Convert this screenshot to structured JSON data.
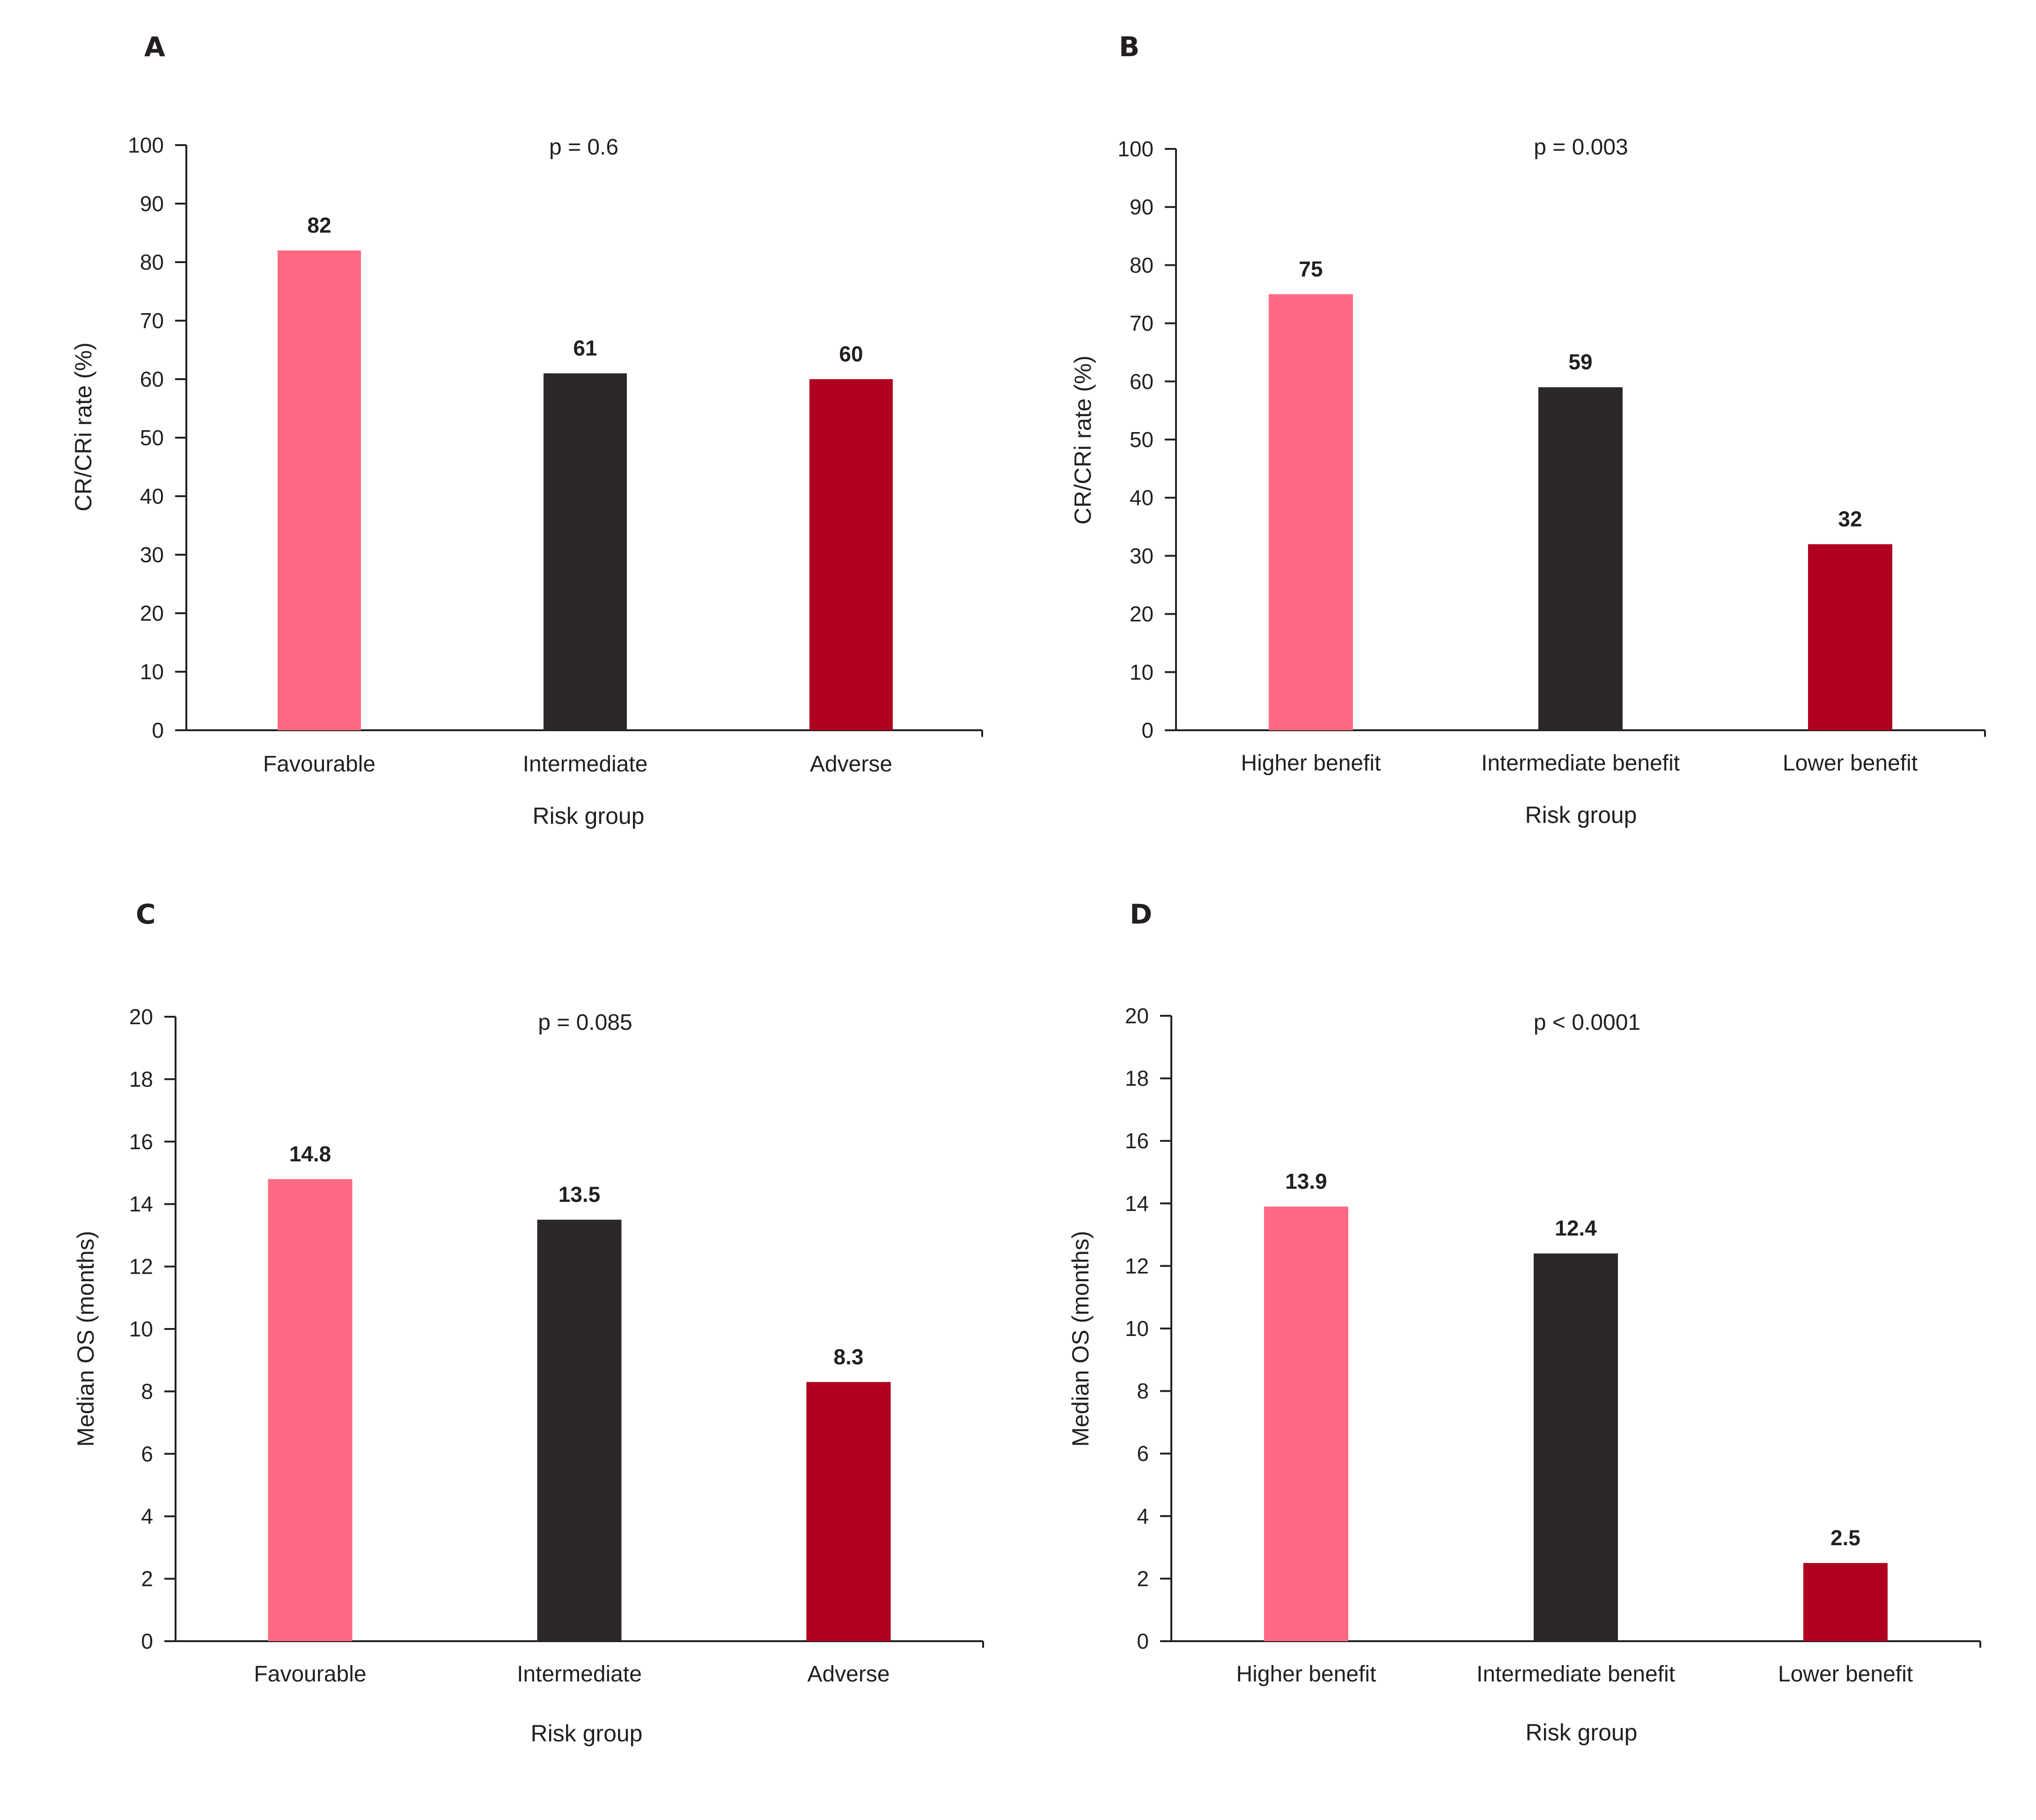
{
  "chart_data": [
    {
      "type": "bar",
      "panel": "A",
      "annotation": "p = 0.6",
      "categories": [
        "Favourable",
        "Intermediate",
        "Adverse"
      ],
      "values": [
        82,
        61,
        60
      ],
      "xlabel": "Risk group",
      "ylabel": "CR/CRi rate (%)",
      "ylim": [
        0,
        100
      ],
      "yticks": [
        0,
        10,
        20,
        30,
        40,
        50,
        60,
        70,
        80,
        90,
        100
      ],
      "colors": [
        "#ff6a82",
        "#2c2829",
        "#b00020"
      ],
      "grid": false
    },
    {
      "type": "bar",
      "panel": "B",
      "annotation": "p = 0.003",
      "categories": [
        "Higher benefit",
        "Intermediate benefit",
        "Lower benefit"
      ],
      "values": [
        75,
        59,
        32
      ],
      "xlabel": "Risk group",
      "ylabel": "CR/CRi rate (%)",
      "ylim": [
        0,
        100
      ],
      "yticks": [
        0,
        10,
        20,
        30,
        40,
        50,
        60,
        70,
        80,
        90,
        100
      ],
      "colors": [
        "#ff6a82",
        "#2c2829",
        "#b00020"
      ],
      "grid": false
    },
    {
      "type": "bar",
      "panel": "C",
      "annotation": "p = 0.085",
      "categories": [
        "Favourable",
        "Intermediate",
        "Adverse"
      ],
      "values": [
        14.8,
        13.5,
        8.3
      ],
      "xlabel": "Risk group",
      "ylabel": "Median OS (months)",
      "ylim": [
        0,
        20
      ],
      "yticks": [
        0,
        2,
        4,
        6,
        8,
        10,
        12,
        14,
        16,
        18,
        20
      ],
      "colors": [
        "#ff6a82",
        "#2c2829",
        "#b00020"
      ],
      "grid": false
    },
    {
      "type": "bar",
      "panel": "D",
      "annotation": "p < 0.0001",
      "categories": [
        "Higher benefit",
        "Intermediate benefit",
        "Lower benefit"
      ],
      "values": [
        13.9,
        12.4,
        2.5
      ],
      "xlabel": "Risk group",
      "ylabel": "Median OS (months)",
      "ylim": [
        0,
        20
      ],
      "yticks": [
        0,
        2,
        4,
        6,
        8,
        10,
        12,
        14,
        16,
        18,
        20
      ],
      "colors": [
        "#ff6a82",
        "#2c2829",
        "#b00020"
      ],
      "grid": false
    }
  ]
}
